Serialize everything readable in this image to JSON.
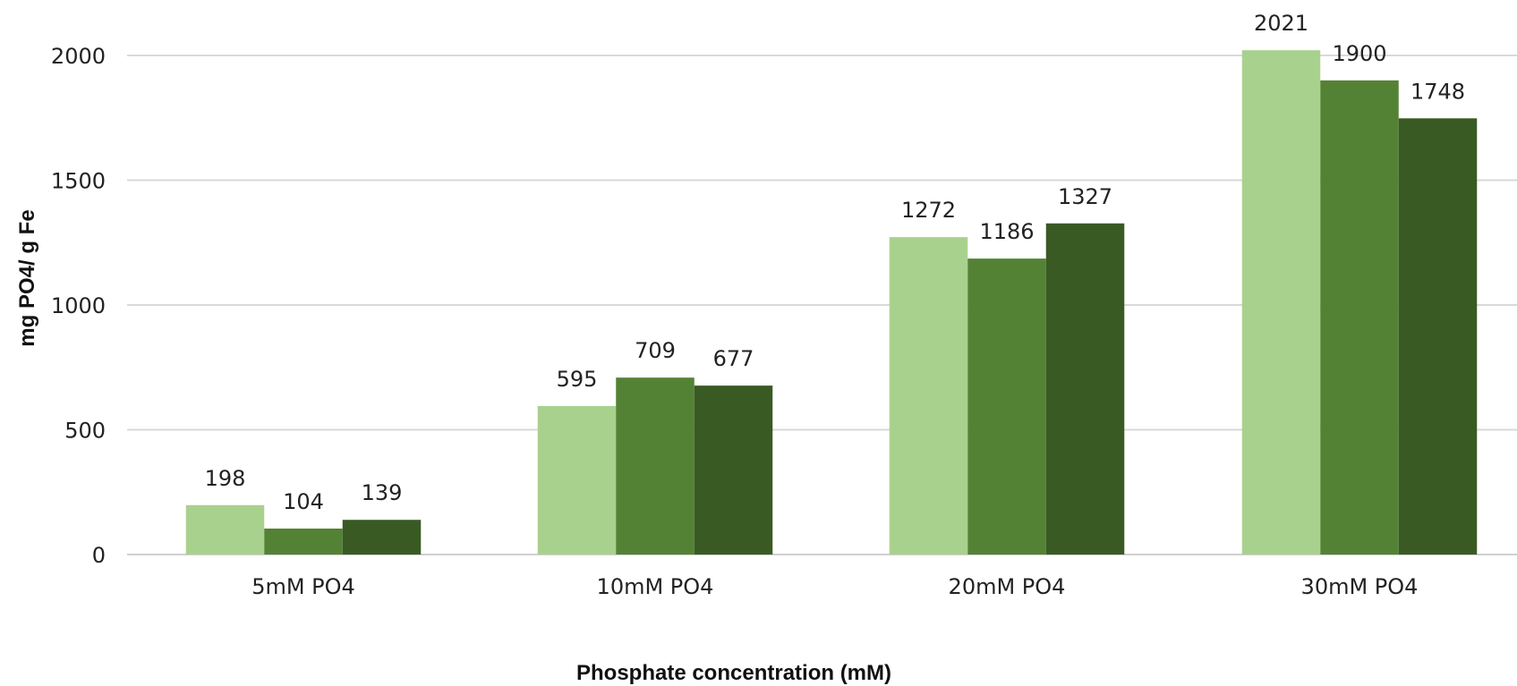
{
  "chart_data": {
    "type": "bar",
    "title": "",
    "xlabel": "Phosphate concentration (mM)",
    "ylabel": "mg PO4/ g Fe",
    "categories": [
      "5mM PO4",
      "10mM PO4",
      "20mM PO4",
      "30mM PO4"
    ],
    "series": [
      {
        "values": [
          198,
          595,
          1272,
          2021
        ],
        "color": "#a9d18e"
      },
      {
        "values": [
          104,
          709,
          1186,
          1900
        ],
        "color": "#548235"
      },
      {
        "values": [
          139,
          677,
          1327,
          1748
        ],
        "color": "#3a5a24"
      }
    ],
    "ylim": [
      0,
      2000
    ],
    "yticks": [
      0,
      500,
      1000,
      1500,
      2000
    ],
    "grid": true,
    "legend": "none"
  }
}
